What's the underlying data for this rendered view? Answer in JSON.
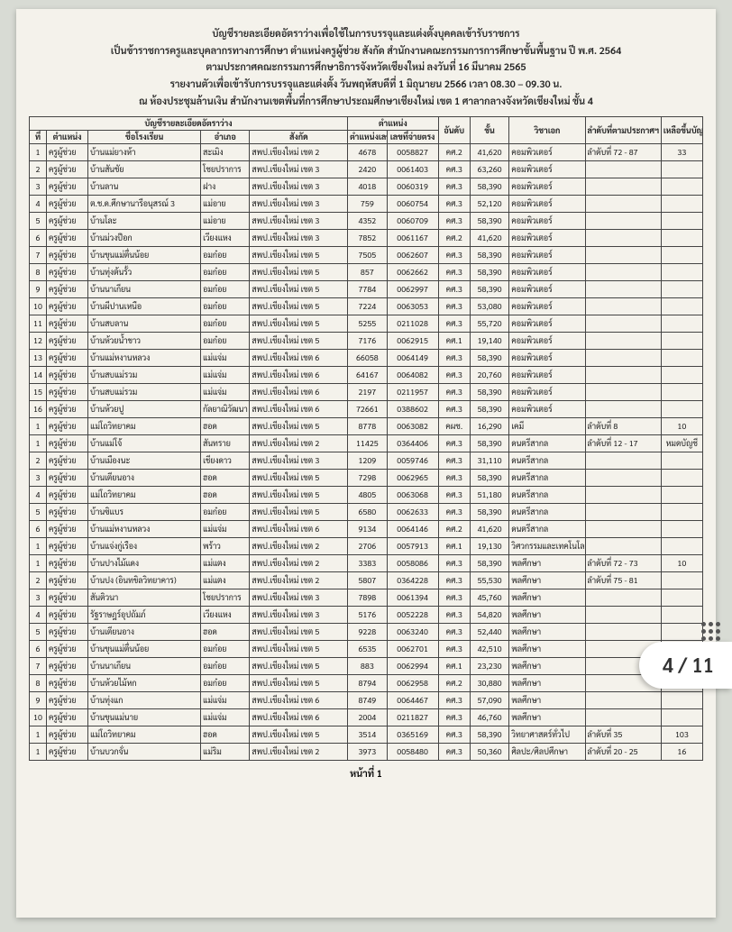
{
  "header": {
    "line1": "บัญชีรายละเอียดอัตราว่างเพื่อใช้ในการบรรจุและแต่งตั้งบุคคลเข้ารับราชการ",
    "line2": "เป็นข้าราชการครูและบุคลากรทางการศึกษา ตำแหน่งครูผู้ช่วย สังกัด สำนักงานคณะกรรมการการศึกษาขั้นพื้นฐาน ปี พ.ศ. 2564",
    "line3": "ตามประกาศคณะกรรมการศึกษาธิการจังหวัดเชียงใหม่ ลงวันที่ 16  มีนาคม  2565",
    "line4": "รายงานตัวเพื่อเข้ารับการบรรจุและแต่งตั้ง วันพฤหัสบดีที่ 1 มิถุนายน 2566  เวลา 08.30 – 09.30  น.",
    "line5": "ณ ห้องประชุมล้านเงิน สำนักงานเขตพื้นที่การศึกษาประถมศึกษาเชียงใหม่ เขต 1 ศาลากลางจังหวัดเชียงใหม่ ชั้น 4"
  },
  "thead": {
    "group1": "บัญชีรายละเอียดอัตราว่าง",
    "group2": "ตำแหน่ง",
    "idx": "ที่",
    "pos": "ตำแหน่ง",
    "school": "ชื่อโรงเรียน",
    "dist": "อำเภอ",
    "org": "สังกัด",
    "pnum": "ตำแหน่งเลขที่",
    "id": "เลขที่จ่ายตรง",
    "rank": "อันดับ",
    "sal": "ขั้น",
    "subj": "วิชาเอก",
    "ann": "ลำดับที่ตามประกาศฯ",
    "rem": "เหลือขึ้นบัญชี"
  },
  "rows": [
    [
      "1",
      "ครูผู้ช่วย",
      "บ้านแม่ยางห้า",
      "สะเมิง",
      "สพป.เชียงใหม่ เขต 2",
      "4678",
      "0058827",
      "คศ.2",
      "41,620",
      "คอมพิวเตอร์",
      "ลำดับที่ 72 - 87",
      "33"
    ],
    [
      "2",
      "ครูผู้ช่วย",
      "บ้านสันชัย",
      "โชยปราการ",
      "สพป.เชียงใหม่ เขต 3",
      "2420",
      "0061403",
      "คศ.3",
      "63,260",
      "คอมพิวเตอร์",
      "",
      ""
    ],
    [
      "3",
      "ครูผู้ช่วย",
      "บ้านลาน",
      "ฝาง",
      "สพป.เชียงใหม่ เขต 3",
      "4018",
      "0060319",
      "คศ.3",
      "58,390",
      "คอมพิวเตอร์",
      "",
      ""
    ],
    [
      "4",
      "ครูผู้ช่วย",
      "ต.ช.ด.ศึกษานารีอนุสรณ์ 3",
      "แม่อาย",
      "สพป.เชียงใหม่ เขต 3",
      "759",
      "0060754",
      "คศ.3",
      "52,120",
      "คอมพิวเตอร์",
      "",
      ""
    ],
    [
      "5",
      "ครูผู้ช่วย",
      "บ้านโละ",
      "แม่อาย",
      "สพป.เชียงใหม่ เขต 3",
      "4352",
      "0060709",
      "คศ.3",
      "58,390",
      "คอมพิวเตอร์",
      "",
      ""
    ],
    [
      "6",
      "ครูผู้ช่วย",
      "บ้านม่วงป๊อก",
      "เวียงแหง",
      "สพป.เชียงใหม่ เขต 3",
      "7852",
      "0061167",
      "คศ.2",
      "41,620",
      "คอมพิวเตอร์",
      "",
      ""
    ],
    [
      "7",
      "ครูผู้ช่วย",
      "บ้านขุนแม่ตื่นน้อย",
      "อมก๋อย",
      "สพป.เชียงใหม่ เขต 5",
      "7505",
      "0062607",
      "คศ.3",
      "58,390",
      "คอมพิวเตอร์",
      "",
      ""
    ],
    [
      "8",
      "ครูผู้ช่วย",
      "บ้านทุ่งต้นรั้ว",
      "อมก๋อย",
      "สพป.เชียงใหม่ เขต 5",
      "857",
      "0062662",
      "คศ.3",
      "58,390",
      "คอมพิวเตอร์",
      "",
      ""
    ],
    [
      "9",
      "ครูผู้ช่วย",
      "บ้านนาเกียน",
      "อมก๋อย",
      "สพป.เชียงใหม่ เขต 5",
      "7784",
      "0062997",
      "คศ.3",
      "58,390",
      "คอมพิวเตอร์",
      "",
      ""
    ],
    [
      "10",
      "ครูผู้ช่วย",
      "บ้านผีปานเหนือ",
      "อมก๋อย",
      "สพป.เชียงใหม่ เขต 5",
      "7224",
      "0063053",
      "คศ.3",
      "53,080",
      "คอมพิวเตอร์",
      "",
      ""
    ],
    [
      "11",
      "ครูผู้ช่วย",
      "บ้านสบลาน",
      "อมก๋อย",
      "สพป.เชียงใหม่ เขต 5",
      "5255",
      "0211028",
      "คศ.3",
      "55,720",
      "คอมพิวเตอร์",
      "",
      ""
    ],
    [
      "12",
      "ครูผู้ช่วย",
      "บ้านห้วยน้ำขาว",
      "อมก๋อย",
      "สพป.เชียงใหม่ เขต 5",
      "7176",
      "0062915",
      "คศ.1",
      "19,140",
      "คอมพิวเตอร์",
      "",
      ""
    ],
    [
      "13",
      "ครูผู้ช่วย",
      "บ้านแม่หงานหลวง",
      "แม่แจ่ม",
      "สพป.เชียงใหม่ เขต 6",
      "66058",
      "0064149",
      "คศ.3",
      "58,390",
      "คอมพิวเตอร์",
      "",
      ""
    ],
    [
      "14",
      "ครูผู้ช่วย",
      "บ้านสบแม่รวม",
      "แม่แจ่ม",
      "สพป.เชียงใหม่ เขต 6",
      "64167",
      "0064082",
      "คศ.3",
      "20,760",
      "คอมพิวเตอร์",
      "",
      ""
    ],
    [
      "15",
      "ครูผู้ช่วย",
      "บ้านสบแม่รวม",
      "แม่แจ่ม",
      "สพป.เชียงใหม่ เขต 6",
      "2197",
      "0211957",
      "คศ.3",
      "58,390",
      "คอมพิวเตอร์",
      "",
      ""
    ],
    [
      "16",
      "ครูผู้ช่วย",
      "บ้านห้วยปู",
      "กัลยาณิวัฒนา",
      "สพป.เชียงใหม่ เขต 6",
      "72661",
      "0388602",
      "คศ.3",
      "58,390",
      "คอมพิวเตอร์",
      "",
      ""
    ],
    [
      "1",
      "ครูผู้ช่วย",
      "แม่โถวิทยาคม",
      "ฮอด",
      "สพป.เชียงใหม่ เขต 5",
      "8778",
      "0063082",
      "คผช.",
      "16,290",
      "เคมี",
      "ลำดับที่ 8",
      "10"
    ],
    [
      "1",
      "ครูผู้ช่วย",
      "บ้านแม่โจ้",
      "สันทราย",
      "สพป.เชียงใหม่ เขต 2",
      "11425",
      "0364406",
      "คศ.3",
      "58,390",
      "ดนตรีสากล",
      "ลำดับที่ 12 - 17",
      "หมดบัญชี"
    ],
    [
      "2",
      "ครูผู้ช่วย",
      "บ้านเมืองนะ",
      "เชียงดาว",
      "สพป.เชียงใหม่ เขต 3",
      "1209",
      "0059746",
      "คศ.3",
      "31,110",
      "ดนตรีสากล",
      "",
      ""
    ],
    [
      "3",
      "ครูผู้ช่วย",
      "บ้านเตียนอาง",
      "ฮอด",
      "สพป.เชียงใหม่ เขต 5",
      "7298",
      "0062965",
      "คศ.3",
      "58,390",
      "ดนตรีสากล",
      "",
      ""
    ],
    [
      "4",
      "ครูผู้ช่วย",
      "แม่โถวิทยาคม",
      "ฮอด",
      "สพป.เชียงใหม่ เขต 5",
      "4805",
      "0063068",
      "คศ.3",
      "51,180",
      "ดนตรีสากล",
      "",
      ""
    ],
    [
      "5",
      "ครูผู้ช่วย",
      "บ้านซิแบร",
      "อมก๋อย",
      "สพป.เชียงใหม่ เขต 5",
      "6580",
      "0062633",
      "คศ.3",
      "58,390",
      "ดนตรีสากล",
      "",
      ""
    ],
    [
      "6",
      "ครูผู้ช่วย",
      "บ้านแม่หงานหลวง",
      "แม่แจ่ม",
      "สพป.เชียงใหม่ เขต 6",
      "9134",
      "0064146",
      "คศ.2",
      "41,620",
      "ดนตรีสากล",
      "",
      ""
    ],
    [
      "1",
      "ครูผู้ช่วย",
      "บ้านแจ่งกู่เรือง",
      "พร้าว",
      "สพป.เชียงใหม่ เขต 2",
      "2706",
      "0057913",
      "คศ.1",
      "19,130",
      "วิศวกรรมและเทคโนโลยี",
      "",
      ""
    ],
    [
      "1",
      "ครูผู้ช่วย",
      "บ้านปางไม้แดง",
      "แม่แตง",
      "สพป.เชียงใหม่ เขต 2",
      "3383",
      "0058086",
      "คศ.3",
      "58,390",
      "พลศึกษา",
      "ลำดับที่ 72 - 73",
      "10"
    ],
    [
      "2",
      "ครูผู้ช่วย",
      "บ้านปง (อินทขิลวิทยาคาร)",
      "แม่แตง",
      "สพป.เชียงใหม่ เขต 2",
      "5807",
      "0364228",
      "คศ.3",
      "55,530",
      "พลศึกษา",
      "ลำดับที่ 75 - 81",
      ""
    ],
    [
      "3",
      "ครูผู้ช่วย",
      "สันติวนา",
      "โชยปราการ",
      "สพป.เชียงใหม่ เขต 3",
      "7898",
      "0061394",
      "คศ.3",
      "45,760",
      "พลศึกษา",
      "",
      ""
    ],
    [
      "4",
      "ครูผู้ช่วย",
      "รัฐราษฎร์อุปถัมภ์",
      "เวียงแหง",
      "สพป.เชียงใหม่ เขต 3",
      "5176",
      "0052228",
      "คศ.3",
      "54,820",
      "พลศึกษา",
      "",
      ""
    ],
    [
      "5",
      "ครูผู้ช่วย",
      "บ้านเตียนอาง",
      "ฮอด",
      "สพป.เชียงใหม่ เขต 5",
      "9228",
      "0063240",
      "คศ.3",
      "52,440",
      "พลศึกษา",
      "",
      ""
    ],
    [
      "6",
      "ครูผู้ช่วย",
      "บ้านขุนแม่ตื่นน้อย",
      "อมก๋อย",
      "สพป.เชียงใหม่ เขต 5",
      "6535",
      "0062701",
      "คศ.3",
      "42,510",
      "พลศึกษา",
      "",
      ""
    ],
    [
      "7",
      "ครูผู้ช่วย",
      "บ้านนาเกียน",
      "อมก๋อย",
      "สพป.เชียงใหม่ เขต 5",
      "883",
      "0062994",
      "คศ.1",
      "23,230",
      "พลศึกษา",
      "",
      ""
    ],
    [
      "8",
      "ครูผู้ช่วย",
      "บ้านห้วยไม้หก",
      "อมก๋อย",
      "สพป.เชียงใหม่ เขต 5",
      "8794",
      "0062958",
      "คศ.2",
      "30,880",
      "พลศึกษา",
      "",
      ""
    ],
    [
      "9",
      "ครูผู้ช่วย",
      "บ้านทุ่งแก",
      "แม่แจ่ม",
      "สพป.เชียงใหม่ เขต 6",
      "8749",
      "0064467",
      "คศ.3",
      "57,090",
      "พลศึกษา",
      "",
      ""
    ],
    [
      "10",
      "ครูผู้ช่วย",
      "บ้านขุนแม่นาย",
      "แม่แจ่ม",
      "สพป.เชียงใหม่ เขต 6",
      "2004",
      "0211827",
      "คศ.3",
      "46,760",
      "พลศึกษา",
      "",
      ""
    ],
    [
      "1",
      "ครูผู้ช่วย",
      "แม่โถวิทยาคม",
      "ฮอด",
      "สพป.เชียงใหม่ เขต 5",
      "3514",
      "0365169",
      "คศ.3",
      "58,390",
      "วิทยาศาสตร์ทั่วไป",
      "ลำดับที่ 35",
      "103"
    ],
    [
      "1",
      "ครูผู้ช่วย",
      "บ้านบวกจั่น",
      "แม่ริม",
      "สพป.เชียงใหม่ เขต 2",
      "3973",
      "0058480",
      "คศ.3",
      "50,360",
      "ศิลปะ/ศิลปศึกษา",
      "ลำดับที่ 20 - 25",
      "16"
    ]
  ],
  "footer": "หน้าที่ 1",
  "badge": "4 / 11"
}
